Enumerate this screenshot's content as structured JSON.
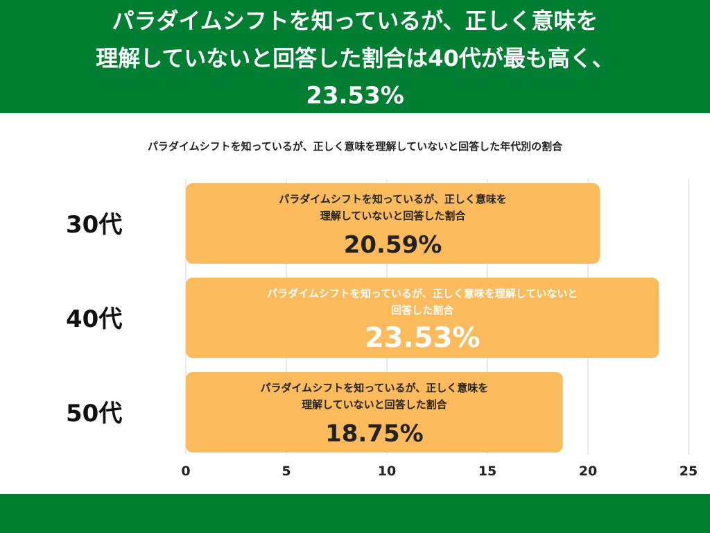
{
  "headline": {
    "line1": "パラダイムシフトを知っているが、正しく意味を",
    "line2": "理解していないと回答した割合は40代が最も高く、",
    "line3": "23.53%"
  },
  "chart_data": {
    "type": "bar",
    "orientation": "horizontal",
    "title": "パラダイムシフトを知っているが、正しく意味を理解していないと回答した年代別の割合",
    "categories": [
      "30代",
      "40代",
      "50代"
    ],
    "series": [
      {
        "values": [
          20.59,
          23.53,
          18.75
        ],
        "data_labels": [
          "20.59%",
          "23.53%",
          "18.75%"
        ],
        "bar_label_lines": [
          [
            "パラダイムシフトを知っているが、正しく意味を",
            "理解していないと回答した割合"
          ],
          [
            "パラダイムシフトを知っているが、正しく意味を理解していないと",
            "回答した割合"
          ],
          [
            "パラダイムシフトを知っているが、正しく意味を",
            "理解していないと回答した割合"
          ]
        ]
      }
    ],
    "xlim": [
      0,
      25
    ],
    "xticks": [
      0,
      5,
      10,
      15,
      20,
      25
    ],
    "grid": "vertical",
    "highlight_index": 1,
    "colors": {
      "bar": "#fbbb5c",
      "bar_text": "#222222",
      "bar_text_highlight": "#ffffff",
      "grid": "#d9d9d9"
    }
  },
  "colors": {
    "header": "#007f32",
    "footer": "#007f32"
  }
}
